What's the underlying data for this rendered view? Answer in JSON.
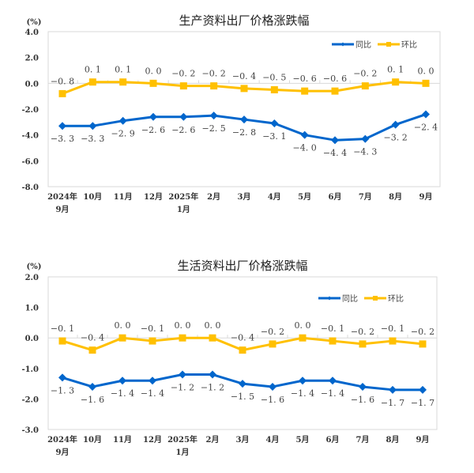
{
  "colors": {
    "yoy": "#0066CC",
    "mom": "#FFC000",
    "frame": "#D9D9D9",
    "zero": "#D9D9D9"
  },
  "chart_data": [
    {
      "type": "line",
      "title": "生产资料出厂价格涨跌幅",
      "ylabel": "(%)",
      "ylim": [
        -8.0,
        4.0
      ],
      "yticks": [
        "4.0",
        "2.0",
        "0.0",
        "-2.0",
        "-4.0",
        "-6.0",
        "-8.0"
      ],
      "ytick_values": [
        4,
        2,
        0,
        -2,
        -4,
        -6,
        -8
      ],
      "categories": [
        {
          "l1": "2024年",
          "l2": "9月"
        },
        {
          "l1": "10月",
          "l2": ""
        },
        {
          "l1": "11月",
          "l2": ""
        },
        {
          "l1": "12月",
          "l2": ""
        },
        {
          "l1": "2025年",
          "l2": "1月"
        },
        {
          "l1": "2月",
          "l2": ""
        },
        {
          "l1": "3月",
          "l2": ""
        },
        {
          "l1": "4月",
          "l2": ""
        },
        {
          "l1": "5月",
          "l2": ""
        },
        {
          "l1": "6月",
          "l2": ""
        },
        {
          "l1": "7月",
          "l2": ""
        },
        {
          "l1": "8月",
          "l2": ""
        },
        {
          "l1": "9月",
          "l2": ""
        }
      ],
      "legend_position": "top-right",
      "series": [
        {
          "name": "同比",
          "key": "yoy",
          "marker": "diamond",
          "values": [
            -3.3,
            -3.3,
            -2.9,
            -2.6,
            -2.6,
            -2.5,
            -2.8,
            -3.1,
            -4.0,
            -4.4,
            -4.3,
            -3.2,
            -2.4
          ],
          "labels": [
            "-3.3",
            "-3.3",
            "-2.9",
            "-2.6",
            "-2.6",
            "-2.5",
            "-2.8",
            "-3.1",
            "-4.0",
            "-4.4",
            "-4.3",
            "-3.2",
            "-2.4"
          ],
          "label_position": "below"
        },
        {
          "name": "环比",
          "key": "mom",
          "marker": "square",
          "values": [
            -0.8,
            0.1,
            0.1,
            0.0,
            -0.2,
            -0.2,
            -0.4,
            -0.5,
            -0.6,
            -0.6,
            -0.2,
            0.1,
            0.0
          ],
          "labels": [
            "-0.8",
            "0.1",
            "0.1",
            "0.0",
            "-0.2",
            "-0.2",
            "-0.4",
            "-0.5",
            "-0.6",
            "-0.6",
            "-0.2",
            "0.1",
            "0.0"
          ],
          "label_position": "above"
        }
      ]
    },
    {
      "type": "line",
      "title": "生活资料出厂价格涨跌幅",
      "ylabel": "(%)",
      "ylim": [
        -3.0,
        2.0
      ],
      "yticks": [
        "2.0",
        "1.0",
        "0.0",
        "-1.0",
        "-2.0",
        "-3.0"
      ],
      "ytick_values": [
        2,
        1,
        0,
        -1,
        -2,
        -3
      ],
      "categories": [
        {
          "l1": "2024年",
          "l2": "9月"
        },
        {
          "l1": "10月",
          "l2": ""
        },
        {
          "l1": "11月",
          "l2": ""
        },
        {
          "l1": "12月",
          "l2": ""
        },
        {
          "l1": "2025年",
          "l2": "1月"
        },
        {
          "l1": "2月",
          "l2": ""
        },
        {
          "l1": "3月",
          "l2": ""
        },
        {
          "l1": "4月",
          "l2": ""
        },
        {
          "l1": "5月",
          "l2": ""
        },
        {
          "l1": "6月",
          "l2": ""
        },
        {
          "l1": "7月",
          "l2": ""
        },
        {
          "l1": "8月",
          "l2": ""
        },
        {
          "l1": "9月",
          "l2": ""
        }
      ],
      "legend_position": "top-right",
      "series": [
        {
          "name": "同比",
          "key": "yoy",
          "marker": "diamond",
          "values": [
            -1.3,
            -1.6,
            -1.4,
            -1.4,
            -1.2,
            -1.2,
            -1.5,
            -1.6,
            -1.4,
            -1.4,
            -1.6,
            -1.7,
            -1.7
          ],
          "labels": [
            "-1.3",
            "-1.6",
            "-1.4",
            "-1.4",
            "-1.2",
            "-1.2",
            "-1.5",
            "-1.6",
            "-1.4",
            "-1.4",
            "-1.6",
            "-1.7",
            "-1.7"
          ],
          "label_position": "below"
        },
        {
          "name": "环比",
          "key": "mom",
          "marker": "square",
          "values": [
            -0.1,
            -0.4,
            0.0,
            -0.1,
            0.0,
            0.0,
            -0.4,
            -0.2,
            0.0,
            -0.1,
            -0.2,
            -0.1,
            -0.2
          ],
          "labels": [
            "-0.1",
            "-0.4",
            "0.0",
            "-0.1",
            "0.0",
            "0.0",
            "-0.4",
            "-0.2",
            "0.0",
            "-0.1",
            "-0.2",
            "-0.1",
            "-0.2"
          ],
          "label_position": "above"
        }
      ]
    }
  ]
}
